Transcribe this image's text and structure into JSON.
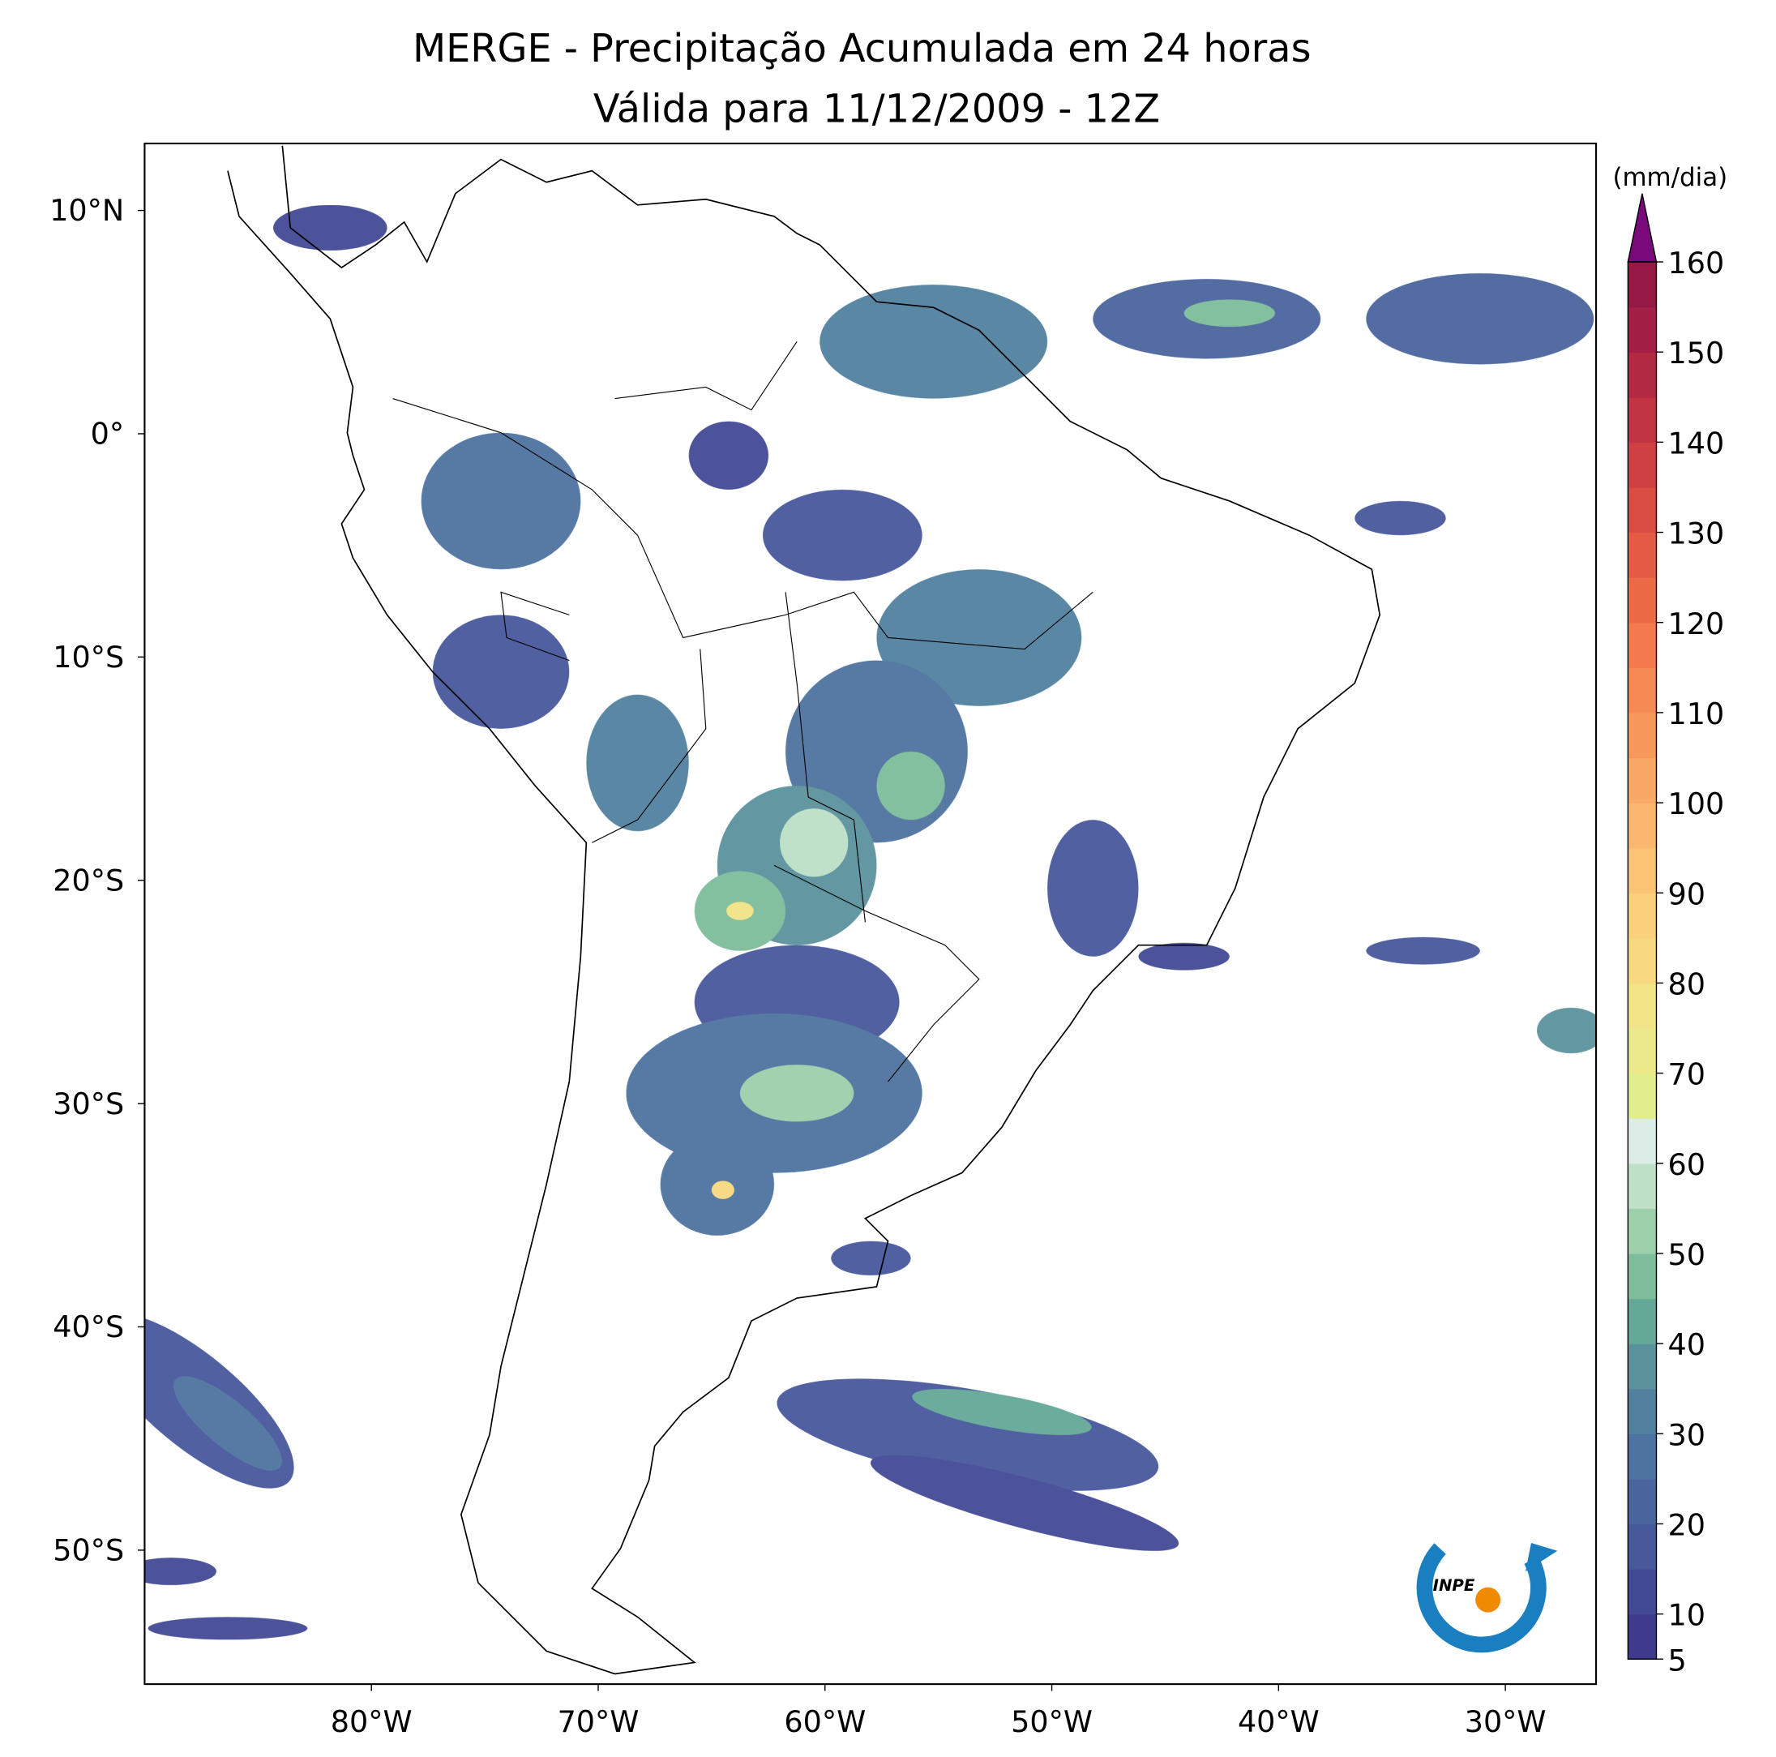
{
  "title": "MERGE - Precipitação Acumulada em 24 horas",
  "subtitle": "Válida para 11/12/2009 - 12Z",
  "map": {
    "xlim": [
      -90,
      -26
    ],
    "ylim": [
      -56,
      13
    ],
    "xticks": [
      {
        "value": -80,
        "label": "80°W"
      },
      {
        "value": -70,
        "label": "70°W"
      },
      {
        "value": -60,
        "label": "60°W"
      },
      {
        "value": -50,
        "label": "50°W"
      },
      {
        "value": -40,
        "label": "40°W"
      },
      {
        "value": -30,
        "label": "30°W"
      }
    ],
    "yticks": [
      {
        "value": 10,
        "label": "10°N"
      },
      {
        "value": 0,
        "label": "0°"
      },
      {
        "value": -10,
        "label": "10°S"
      },
      {
        "value": -20,
        "label": "20°S"
      },
      {
        "value": -30,
        "label": "30°S"
      },
      {
        "value": -40,
        "label": "40°S"
      },
      {
        "value": -50,
        "label": "50°S"
      }
    ]
  },
  "colorbar": {
    "label": "(mm/dia)",
    "levels": [
      5,
      10,
      15,
      20,
      25,
      30,
      35,
      40,
      45,
      50,
      55,
      60,
      65,
      70,
      75,
      80,
      85,
      90,
      95,
      100,
      105,
      110,
      115,
      120,
      125,
      130,
      135,
      140,
      145,
      150,
      155,
      160
    ],
    "colors": [
      "#3e3b8c",
      "#434a95",
      "#47589b",
      "#4a659e",
      "#4e73a0",
      "#52819f",
      "#5b929c",
      "#64a898",
      "#7dbd9b",
      "#9dcfab",
      "#bde0c7",
      "#dbede6",
      "#e2ee8e",
      "#ebe98a",
      "#f2e387",
      "#f7da80",
      "#fad07a",
      "#fbc474",
      "#fbb76d",
      "#f9a865",
      "#f8995c",
      "#f68a54",
      "#f27a4d",
      "#ec6b47",
      "#e45c43",
      "#da4d42",
      "#ce4042",
      "#c03443",
      "#b22944",
      "#a31f45",
      "#941945"
    ],
    "extend_color": "#7a0a7c",
    "ticks": [
      5,
      10,
      20,
      30,
      40,
      50,
      60,
      70,
      80,
      90,
      100,
      110,
      120,
      130,
      140,
      150,
      160
    ]
  },
  "logo_text": "INPE"
}
